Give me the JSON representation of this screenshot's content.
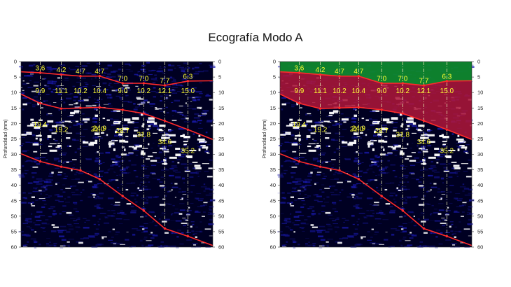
{
  "page": {
    "title": "Ecografía Modo A"
  },
  "colors": {
    "background": "#000022",
    "speckle_blue": "#1a1ab0",
    "speckle_white": "#ffffff",
    "boundary_line": "#ff2a2a",
    "marker_line": "#e6e6b0",
    "value_text": "#ffff33",
    "overlay_top": "#0f8a2e",
    "overlay_mid": "#b0163a"
  },
  "axis": {
    "label": "Profundidad (mm)",
    "ticks": [
      "0",
      "5",
      "10",
      "15",
      "20",
      "25",
      "30",
      "35",
      "40",
      "45",
      "50",
      "55",
      "60"
    ],
    "depth_max": 60
  },
  "chart_data": {
    "type": "scatter",
    "ylabel": "Profundidad (mm)",
    "ylim": [
      0,
      60
    ],
    "scan_line_fractions": [
      0.1,
      0.21,
      0.31,
      0.41,
      0.53,
      0.64,
      0.75,
      0.87
    ],
    "layer_1_values": [
      "3.6",
      "4.2",
      "4.7",
      "4.7",
      "7.0",
      "7.0",
      "7.7",
      "6.3"
    ],
    "layer_2_values": [
      "9.9",
      "11.1",
      "10.2",
      "10.4",
      "9.0",
      "10.2",
      "12.1",
      "15.0"
    ],
    "layer_3_values": [
      "19.4",
      "19.2",
      "21.0",
      "24.9",
      "28.7",
      "31.8",
      "34.6",
      "35.2"
    ],
    "boundaries": [
      {
        "name": "boundary-1",
        "points": [
          [
            0.0,
            3.3
          ],
          [
            0.1,
            3.6
          ],
          [
            0.21,
            4.2
          ],
          [
            0.31,
            4.7
          ],
          [
            0.41,
            4.7
          ],
          [
            0.53,
            7.0
          ],
          [
            0.64,
            7.0
          ],
          [
            0.75,
            7.7
          ],
          [
            0.87,
            6.3
          ],
          [
            1.0,
            6.2
          ]
        ]
      },
      {
        "name": "boundary-2",
        "points": [
          [
            0.0,
            10.5
          ],
          [
            0.1,
            13.5
          ],
          [
            0.21,
            15.2
          ],
          [
            0.31,
            15.0
          ],
          [
            0.41,
            14.8
          ],
          [
            0.53,
            15.6
          ],
          [
            0.64,
            16.8
          ],
          [
            0.75,
            19.2
          ],
          [
            0.87,
            22.0
          ],
          [
            1.0,
            25.2
          ]
        ]
      },
      {
        "name": "boundary-3",
        "points": [
          [
            0.0,
            29.8
          ],
          [
            0.1,
            32.3
          ],
          [
            0.21,
            34.0
          ],
          [
            0.31,
            35.2
          ],
          [
            0.41,
            38.0
          ],
          [
            0.53,
            43.5
          ],
          [
            0.64,
            48.2
          ],
          [
            0.75,
            54.0
          ],
          [
            0.87,
            56.5
          ],
          [
            1.0,
            59.5
          ]
        ]
      }
    ]
  }
}
